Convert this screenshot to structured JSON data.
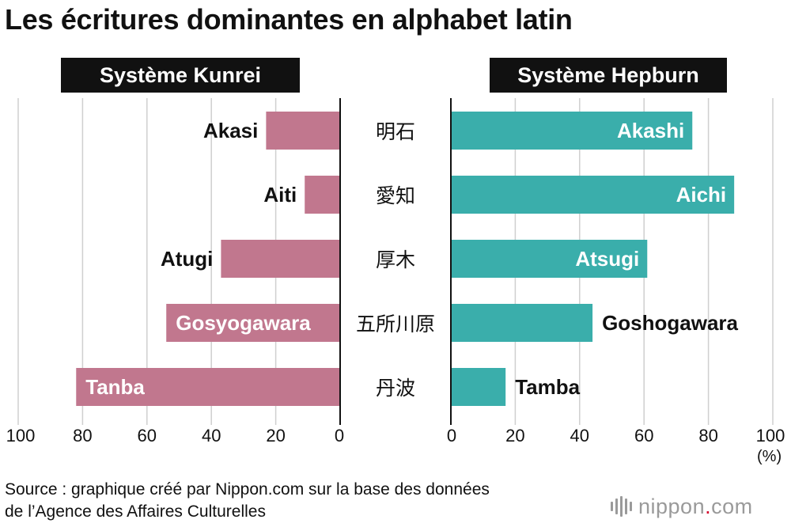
{
  "title": "Les écritures dominantes en alphabet latin",
  "source": {
    "line1": "Source : graphique créé par Nippon.com sur la base des données",
    "line2": "de l’Agence des Affaires Culturelles"
  },
  "logo": {
    "name": "nippon",
    "dot": ".",
    "suffix": "com",
    "icon": "nippon-logo-icon",
    "colors": {
      "text": "#9a9a9a",
      "dot": "#d4002a"
    }
  },
  "chart_data": {
    "type": "bar",
    "orientation": "horizontal",
    "layout": "butterfly",
    "unit_label": "(%)",
    "categories": [
      "明石",
      "愛知",
      "厚木",
      "五所川原",
      "丹波"
    ],
    "xlim": [
      0,
      100
    ],
    "ticks": [
      0,
      20,
      40,
      60,
      80,
      100
    ],
    "tick_labels": [
      "0",
      "20",
      "40",
      "60",
      "80",
      "100"
    ],
    "grid": true,
    "series": [
      {
        "name": "Système Kunrei",
        "side": "left",
        "color": "#c1778e",
        "values": [
          23,
          11,
          37,
          54,
          82
        ],
        "bar_labels": [
          "Akasi",
          "Aiti",
          "Atugi",
          "Gosyogawara",
          "Tanba"
        ]
      },
      {
        "name": "Système Hepburn",
        "side": "right",
        "color": "#3aaeab",
        "values": [
          75,
          88,
          61,
          44,
          17
        ],
        "bar_labels": [
          "Akashi",
          "Aichi",
          "Atsugi",
          "Goshogawara",
          "Tamba"
        ]
      }
    ]
  }
}
